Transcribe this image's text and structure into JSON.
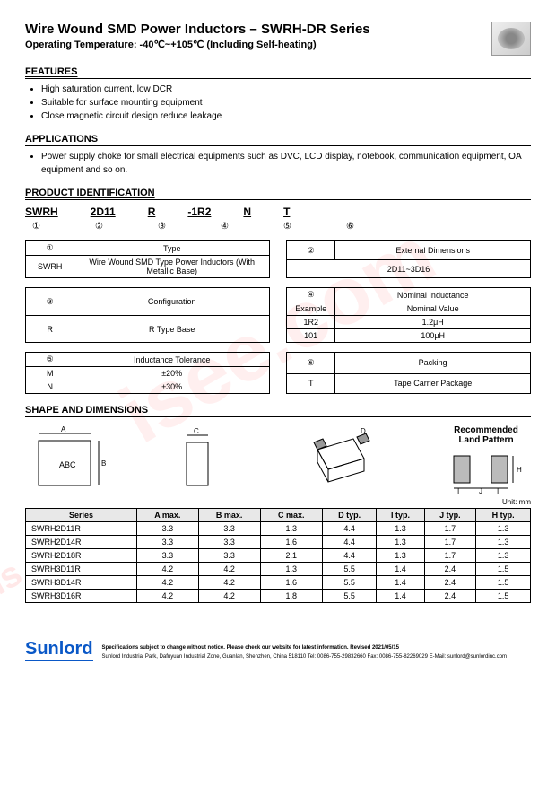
{
  "header": {
    "title": "Wire Wound SMD Power Inductors – SWRH-DR Series",
    "subtitle": "Operating Temperature: -40℃~+105℃ (Including Self-heating)"
  },
  "sections": {
    "features": "FEATURES",
    "applications": "APPLICATIONS",
    "pid": "PRODUCT IDENTIFICATION",
    "shape": "SHAPE AND DIMENSIONS"
  },
  "features": [
    "High saturation current, low DCR",
    "Suitable for surface mounting equipment",
    "Close magnetic circuit design reduce leakage"
  ],
  "applications": [
    "Power supply choke for small electrical equipments such as DVC, LCD display, notebook, communication equipment, OA equipment and so on."
  ],
  "pid": {
    "parts": [
      "SWRH",
      "2D11",
      "R",
      "-1R2",
      "N",
      "T"
    ],
    "nums": [
      "①",
      "②",
      "③",
      "④",
      "⑤",
      "⑥"
    ]
  },
  "box1": {
    "head": "Type",
    "num": "①",
    "k": "SWRH",
    "v": "Wire Wound SMD Type Power Inductors (With Metallic Base)"
  },
  "box2": {
    "head": "External Dimensions",
    "num": "②",
    "v": "2D11~3D16"
  },
  "box3": {
    "head": "Configuration",
    "num": "③",
    "k": "R",
    "v": "R Type Base"
  },
  "box4": {
    "head": "Nominal Inductance",
    "num": "④",
    "h1": "Example",
    "h2": "Nominal Value",
    "r1k": "1R2",
    "r1v": "1.2μH",
    "r2k": "101",
    "r2v": "100μH"
  },
  "box5": {
    "head": "Inductance Tolerance",
    "num": "⑤",
    "r1k": "M",
    "r1v": "±20%",
    "r2k": "N",
    "r2v": "±30%"
  },
  "box6": {
    "head": "Packing",
    "num": "⑥",
    "k": "T",
    "v": "Tape Carrier Package"
  },
  "rec_label": "Recommended\nLand Pattern",
  "abc": "ABC",
  "unit": "Unit: mm",
  "dims": {
    "cols": [
      "Series",
      "A max.",
      "B max.",
      "C max.",
      "D typ.",
      "I typ.",
      "J typ.",
      "H typ."
    ],
    "rows": [
      [
        "SWRH2D11R",
        "3.3",
        "3.3",
        "1.3",
        "4.4",
        "1.3",
        "1.7",
        "1.3"
      ],
      [
        "SWRH2D14R",
        "3.3",
        "3.3",
        "1.6",
        "4.4",
        "1.3",
        "1.7",
        "1.3"
      ],
      [
        "SWRH2D18R",
        "3.3",
        "3.3",
        "2.1",
        "4.4",
        "1.3",
        "1.7",
        "1.3"
      ],
      [
        "SWRH3D11R",
        "4.2",
        "4.2",
        "1.3",
        "5.5",
        "1.4",
        "2.4",
        "1.5"
      ],
      [
        "SWRH3D14R",
        "4.2",
        "4.2",
        "1.6",
        "5.5",
        "1.4",
        "2.4",
        "1.5"
      ],
      [
        "SWRH3D16R",
        "4.2",
        "4.2",
        "1.8",
        "5.5",
        "1.4",
        "2.4",
        "1.5"
      ]
    ]
  },
  "footer": {
    "logo": "Sunlord",
    "line1": "Specifications subject to change without notice. Please check our website for latest information.      Revised 2021/05/15",
    "line2": "Sunlord Industrial Park, Dafuyuan Industrial Zone, Guanlan, Shenzhen, China 518110 Tel: 0086-755-29832660 Fax: 0086-755-82269029 E-Mail: sunlord@sunlordinc.com"
  },
  "watermark": "isee.com"
}
